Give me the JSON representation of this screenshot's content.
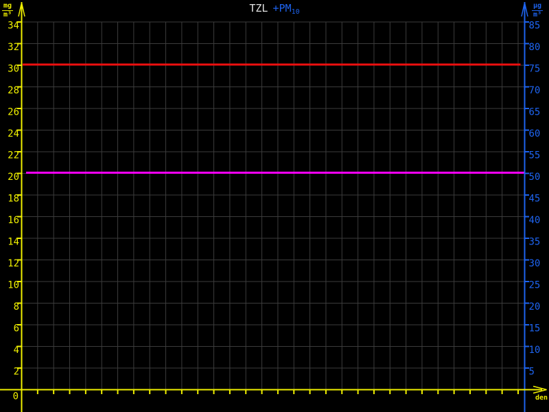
{
  "window": {
    "background": "#000000"
  },
  "title": {
    "left_text": "TZL",
    "right_text": "+PM",
    "right_subscript": "10",
    "left_color": "#e4e4e4",
    "right_color": "#1e64f0"
  },
  "axes": {
    "left": {
      "unit_numerator": "mg",
      "unit_denominator": "m³",
      "color": "#f0f000"
    },
    "right": {
      "unit_numerator": "µg",
      "unit_denominator": "m³",
      "color": "#1e64f0"
    },
    "x": {
      "label": "den",
      "origin_label": "0",
      "color": "#f0f000"
    }
  },
  "chart_data": {
    "type": "line",
    "title": "TZL +PM10",
    "grid": true,
    "grid_color": "#3c3c3c",
    "background": "#000000",
    "x_axis": {
      "label": "den",
      "days": 31,
      "numeric_tick_labels_shown": false,
      "origin_label": "0",
      "color": "#f0f000"
    },
    "y_left": {
      "unit": "mg/m³",
      "min": 0,
      "max": 35,
      "tick_step": 2,
      "ticks": [
        0,
        2,
        4,
        6,
        8,
        10,
        12,
        14,
        16,
        18,
        20,
        22,
        24,
        26,
        28,
        30,
        32,
        34
      ],
      "color": "#f0f000"
    },
    "y_right": {
      "unit": "µg/m³",
      "min": 0,
      "max": 87.5,
      "tick_step": 5,
      "ticks": [
        5,
        10,
        15,
        20,
        25,
        30,
        35,
        40,
        45,
        50,
        55,
        60,
        65,
        70,
        75,
        80,
        85
      ],
      "color": "#1e64f0"
    },
    "series": [
      {
        "name": "TZL",
        "style": "constant-line",
        "axis": "left",
        "value": 30,
        "equivalent_right_value": 75,
        "color": "#ee0f0f",
        "thickness": 3
      },
      {
        "name": "PM10",
        "style": "constant-line",
        "axis": "right",
        "value": 50,
        "equivalent_left_value": 20,
        "color": "#ff00ff",
        "thickness": 3
      }
    ]
  }
}
